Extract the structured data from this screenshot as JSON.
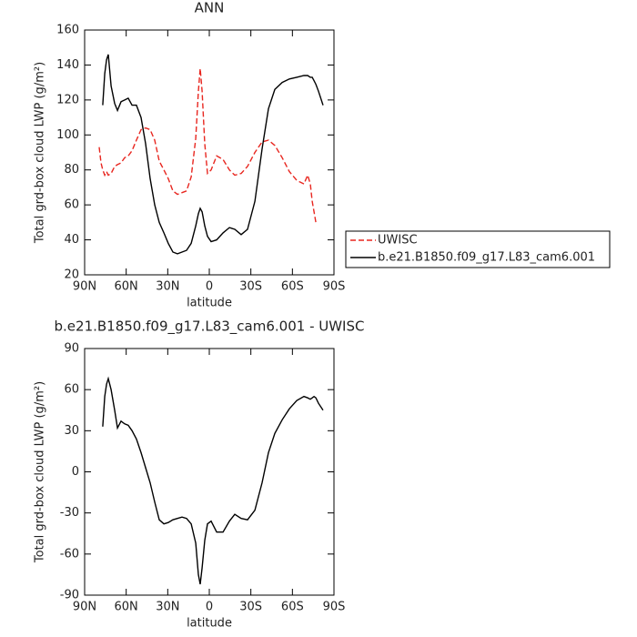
{
  "chart_data": [
    {
      "type": "line",
      "title": "ANN",
      "x_label": "latitude",
      "y_label": "Total grd-box cloud LWP (g/m²)",
      "x": [
        79.5,
        78.2,
        76.9,
        75.5,
        74.2,
        72.9,
        70.9,
        68.3,
        66.3,
        63.7,
        61.1,
        58.5,
        55.8,
        52.6,
        49.3,
        46.0,
        42.7,
        39.4,
        36.1,
        32.8,
        29.6,
        26.3,
        23.0,
        19.7,
        16.4,
        13.1,
        9.8,
        7.9,
        6.6,
        5.2,
        3.3,
        1.3,
        -1.3,
        -5.3,
        -9.9,
        -14.5,
        -18.4,
        -23.0,
        -27.6,
        -32.9,
        -38.1,
        -42.7,
        -47.3,
        -52.6,
        -57.8,
        -63.1,
        -68.3,
        -71.0,
        -72.9,
        -74.3,
        -75.6,
        -76.9,
        -78.8,
        -82.1
      ],
      "series": [
        {
          "name": "UWISC",
          "color": "#e8261f",
          "style": "dashed",
          "values": [
            93,
            84,
            80,
            77,
            79,
            77,
            78,
            82,
            83,
            84,
            87,
            88,
            91,
            97,
            103,
            104,
            103,
            97,
            85,
            80,
            75,
            68,
            66,
            67,
            68,
            76,
            98,
            125,
            138,
            125,
            95,
            78,
            80,
            88,
            86,
            80,
            77,
            78,
            82,
            90,
            96,
            97,
            94,
            87,
            79,
            74,
            72,
            77,
            72,
            62,
            56,
            50,
            null,
            null
          ]
        },
        {
          "name": "b.e21.B1850.f09_g17.L83_cam6.001",
          "color": "#000000",
          "style": "solid",
          "values": [
            null,
            null,
            117,
            135,
            143,
            146,
            128,
            118,
            114,
            119,
            120,
            121,
            117,
            117,
            110,
            95,
            75,
            60,
            50,
            44,
            38,
            33,
            32,
            33,
            34,
            38,
            48,
            55,
            58,
            56,
            48,
            42,
            39,
            40,
            44,
            47,
            46,
            43,
            46,
            62,
            92,
            115,
            126,
            130,
            132,
            133,
            134,
            134,
            133,
            133,
            131,
            129,
            125,
            117
          ]
        }
      ],
      "xlim": [
        90,
        -90
      ],
      "xticks": [
        {
          "value": 90,
          "label": "90N"
        },
        {
          "value": 60,
          "label": "60N"
        },
        {
          "value": 30,
          "label": "30N"
        },
        0,
        {
          "value": -30,
          "label": "30S"
        },
        {
          "value": -60,
          "label": "60S"
        },
        {
          "value": -90,
          "label": "90S"
        }
      ],
      "ylim": [
        20,
        160
      ],
      "yticks": [
        20,
        40,
        60,
        80,
        100,
        120,
        140,
        160
      ],
      "legend": "outside right"
    },
    {
      "type": "line",
      "title": "b.e21.B1850.f09_g17.L83_cam6.001 - UWISC",
      "x_label": "latitude",
      "y_label": "Total grd-box cloud LWP (g/m²)",
      "x": [
        76.9,
        75.5,
        74.2,
        72.9,
        70.9,
        68.3,
        66.3,
        63.7,
        61.1,
        58.5,
        55.8,
        52.6,
        49.3,
        46.0,
        42.7,
        39.4,
        36.1,
        32.8,
        29.6,
        26.3,
        23.0,
        19.7,
        16.4,
        13.1,
        9.8,
        7.9,
        6.6,
        5.2,
        3.3,
        1.3,
        -1.3,
        -5.3,
        -9.9,
        -14.5,
        -18.4,
        -23.0,
        -27.6,
        -32.9,
        -38.1,
        -42.7,
        -47.3,
        -52.6,
        -57.8,
        -63.1,
        -68.3,
        -71.0,
        -72.9,
        -74.3,
        -75.6,
        -76.9,
        -78.8,
        -82.1
      ],
      "series": [
        {
          "color": "#000000",
          "style": "solid",
          "values": [
            33,
            55,
            64,
            68,
            60,
            45,
            32,
            37,
            35,
            34,
            30,
            24,
            14,
            3,
            -8,
            -22,
            -35,
            -38,
            -37,
            -35,
            -34,
            -33,
            -34,
            -38,
            -52,
            -75,
            -82,
            -70,
            -50,
            -38,
            -36,
            -44,
            -44,
            -36,
            -31,
            -34,
            -35,
            -28,
            -8,
            14,
            28,
            38,
            46,
            52,
            55,
            54,
            53,
            54,
            55,
            54,
            50,
            45
          ]
        }
      ],
      "xlim": [
        90,
        -90
      ],
      "xticks": [
        {
          "value": 90,
          "label": "90N"
        },
        {
          "value": 60,
          "label": "60N"
        },
        {
          "value": 30,
          "label": "30N"
        },
        0,
        {
          "value": -30,
          "label": "30S"
        },
        {
          "value": -60,
          "label": "60S"
        },
        {
          "value": -90,
          "label": "90S"
        }
      ],
      "ylim": [
        -90,
        90
      ],
      "yticks": [
        -90,
        -60,
        -30,
        0,
        30,
        60,
        90
      ]
    }
  ]
}
